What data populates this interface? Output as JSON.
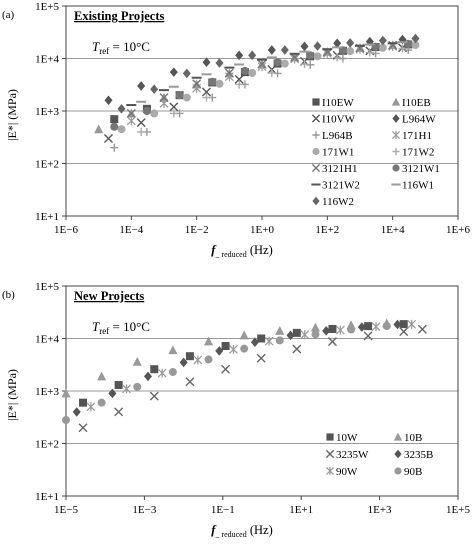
{
  "chart_data": [
    {
      "type": "scatter",
      "panel_label": "(a)",
      "title": "Existing Projects",
      "annotation": {
        "prefix": "T",
        "subscript": "ref",
        "text": " = 10°C"
      },
      "ylabel": "|E*| (MPa)",
      "xlabel": {
        "main": "f",
        "subscript": "_ reduced",
        "unit": "(Hz)"
      },
      "xlim": [
        1e-06,
        1000000.0
      ],
      "ylim": [
        10,
        100000
      ],
      "xscale": "log",
      "yscale": "log",
      "grid": "horizontal",
      "legend_position": "lower-right",
      "x_ticks": [
        "1E−6",
        "1E−4",
        "1E−2",
        "1E+0",
        "1E+2",
        "1E+4",
        "1E+6"
      ],
      "y_ticks": [
        "1E+1",
        "1E+2",
        "1E+3",
        "1E+4",
        "1E+5"
      ],
      "series": [
        {
          "name": "I10EW",
          "marker": "square",
          "color": "#555555",
          "x": [
            3e-05,
            0.0003,
            0.003,
            0.03,
            0.3,
            3,
            30,
            300,
            3000,
            30000
          ],
          "y": [
            700,
            1100,
            2000,
            3500,
            5500,
            8000,
            11000,
            14000,
            16500,
            18500
          ]
        },
        {
          "name": "I10EB",
          "marker": "triangle",
          "color": "#999999",
          "x": [
            1e-05,
            0.0001,
            0.001,
            0.01,
            0.1,
            1,
            10,
            100,
            1000,
            10000
          ],
          "y": [
            450,
            900,
            1800,
            3200,
            5200,
            7800,
            10500,
            13500,
            16000,
            18000
          ]
        },
        {
          "name": "I10VW",
          "marker": "x",
          "color": "#555555",
          "x": [
            2e-05,
            0.0002,
            0.002,
            0.02,
            0.2,
            2,
            20,
            200,
            2000,
            20000
          ],
          "y": [
            300,
            600,
            1200,
            2300,
            4000,
            6200,
            8800,
            11500,
            14000,
            16000
          ]
        },
        {
          "name": "L964W",
          "marker": "diamond",
          "color": "#555555",
          "x": [
            2e-05,
            0.0002,
            0.002,
            0.02,
            0.2,
            2,
            20,
            200,
            2000,
            20000
          ],
          "y": [
            1600,
            3000,
            5500,
            8500,
            11500,
            14500,
            17000,
            19500,
            21000,
            23000
          ]
        },
        {
          "name": "L964B",
          "marker": "plus",
          "color": "#999999",
          "x": [
            3e-05,
            0.0003,
            0.003,
            0.03,
            0.3,
            3,
            30,
            300,
            3000,
            30000
          ],
          "y": [
            200,
            400,
            900,
            1800,
            3200,
            5200,
            7600,
            10000,
            12500,
            14500
          ]
        },
        {
          "name": "171H1",
          "marker": "asterisk",
          "color": "#999999",
          "x": [
            0.0001,
            0.001,
            0.01,
            0.1,
            1,
            10,
            100,
            1000,
            10000
          ],
          "y": [
            650,
            1400,
            2700,
            4500,
            7000,
            9800,
            12500,
            15000,
            17000
          ]
        },
        {
          "name": "171W1",
          "marker": "circle",
          "color": "#aaaaaa",
          "x": [
            5e-05,
            0.0005,
            0.005,
            0.05,
            0.5,
            5,
            50,
            500,
            5000,
            50000
          ],
          "y": [
            450,
            900,
            1800,
            3300,
            5300,
            8000,
            11000,
            13800,
            16000,
            18000
          ]
        },
        {
          "name": "171W2",
          "marker": "plus",
          "color": "#aaaaaa",
          "x": [
            0.0002,
            0.002,
            0.02,
            0.2,
            2,
            20,
            200,
            2000,
            20000
          ],
          "y": [
            400,
            900,
            1800,
            3200,
            5300,
            7800,
            10500,
            13000,
            15500
          ]
        },
        {
          "name": "3121H1",
          "marker": "x",
          "color": "#777777",
          "x": [
            0.0001,
            0.001,
            0.01,
            0.1,
            1,
            10,
            100,
            1000,
            10000
          ],
          "y": [
            900,
            1800,
            3300,
            5300,
            7800,
            10500,
            13300,
            15800,
            18000
          ]
        },
        {
          "name": "3121W1",
          "marker": "circle",
          "color": "#777777",
          "x": [
            3e-05,
            0.0003,
            0.003,
            0.03,
            0.3,
            3,
            30,
            300,
            3000,
            30000
          ],
          "y": [
            500,
            1000,
            2000,
            3600,
            5800,
            8500,
            11500,
            14300,
            16800,
            19000
          ]
        },
        {
          "name": "3121W2",
          "marker": "dash",
          "color": "#555555",
          "x": [
            0.0001,
            0.001,
            0.01,
            0.1,
            1,
            10,
            100,
            1000,
            10000
          ],
          "y": [
            1300,
            2500,
            4300,
            6700,
            9500,
            12300,
            15000,
            17500,
            19500
          ]
        },
        {
          "name": "116W1",
          "marker": "dash",
          "color": "#999999",
          "x": [
            0.0002,
            0.002,
            0.02,
            0.2,
            2,
            20,
            200,
            2000,
            20000
          ],
          "y": [
            1500,
            2900,
            5000,
            7700,
            10500,
            13500,
            16300,
            18500,
            20500
          ]
        },
        {
          "name": "116W2",
          "marker": "diamond",
          "color": "#666666",
          "x": [
            5e-05,
            0.0005,
            0.005,
            0.05,
            0.5,
            5,
            50,
            500,
            5000,
            50000
          ],
          "y": [
            1100,
            2600,
            5200,
            8200,
            11500,
            14500,
            17300,
            19800,
            22000,
            24000
          ]
        }
      ]
    },
    {
      "type": "scatter",
      "panel_label": "(b)",
      "title": "New Projects",
      "annotation": {
        "prefix": "T",
        "subscript": "ref",
        "text": " = 10°C"
      },
      "ylabel": "|E*| (MPa)",
      "xlabel": {
        "main": "f",
        "subscript": "_ reduced",
        "unit": "(Hz)"
      },
      "xlim": [
        1e-05,
        1000000.0
      ],
      "ylim": [
        10,
        100000
      ],
      "xscale": "log",
      "yscale": "log",
      "grid": "horizontal",
      "legend_position": "lower-right",
      "x_ticks": [
        "1E−5",
        "1E−3",
        "1E−1",
        "1E+1",
        "1E+3",
        "1E+5"
      ],
      "y_ticks": [
        "1E+1",
        "1E+2",
        "1E+3",
        "1E+4",
        "1E+5"
      ],
      "series": [
        {
          "name": "10W",
          "marker": "square",
          "color": "#555555",
          "x": [
            3e-05,
            0.0003,
            0.003,
            0.03,
            0.3,
            3,
            30,
            300,
            3000,
            30000
          ],
          "y": [
            600,
            1300,
            2600,
            4600,
            7200,
            10000,
            12800,
            15200,
            17200,
            18800
          ]
        },
        {
          "name": "10B",
          "marker": "triangle",
          "color": "#999999",
          "x": [
            1e-05,
            0.0001,
            0.001,
            0.01,
            0.1,
            1,
            10,
            100,
            1000,
            10000
          ],
          "y": [
            900,
            1900,
            3600,
            6000,
            8800,
            11500,
            14000,
            16200,
            18000,
            19500
          ]
        },
        {
          "name": "3235W",
          "marker": "x",
          "color": "#666666",
          "x": [
            3e-05,
            0.0003,
            0.003,
            0.03,
            0.3,
            3,
            30,
            300,
            3000,
            30000,
            100000
          ],
          "y": [
            200,
            400,
            800,
            1500,
            2600,
            4200,
            6300,
            8700,
            11200,
            13500,
            15000
          ]
        },
        {
          "name": "3235B",
          "marker": "diamond",
          "color": "#555555",
          "x": [
            2e-05,
            0.0002,
            0.002,
            0.02,
            0.2,
            2,
            20,
            200,
            2000,
            20000
          ],
          "y": [
            400,
            900,
            1900,
            3500,
            5800,
            8500,
            11500,
            14000,
            16500,
            18500
          ]
        },
        {
          "name": "90W",
          "marker": "asterisk",
          "color": "#999999",
          "x": [
            5e-05,
            0.0005,
            0.005,
            0.05,
            0.5,
            5,
            50,
            500,
            5000,
            50000
          ],
          "y": [
            500,
            1100,
            2200,
            3900,
            6200,
            8900,
            11800,
            14500,
            16800,
            18600
          ]
        },
        {
          "name": "90B",
          "marker": "circle",
          "color": "#999999",
          "x": [
            1e-05,
            0.0001,
            0.001,
            0.01,
            0.1,
            1,
            10,
            100,
            1000,
            10000
          ],
          "y": [
            280,
            600,
            1200,
            2300,
            4000,
            6400,
            9200,
            12000,
            14800,
            17300
          ]
        }
      ]
    }
  ]
}
